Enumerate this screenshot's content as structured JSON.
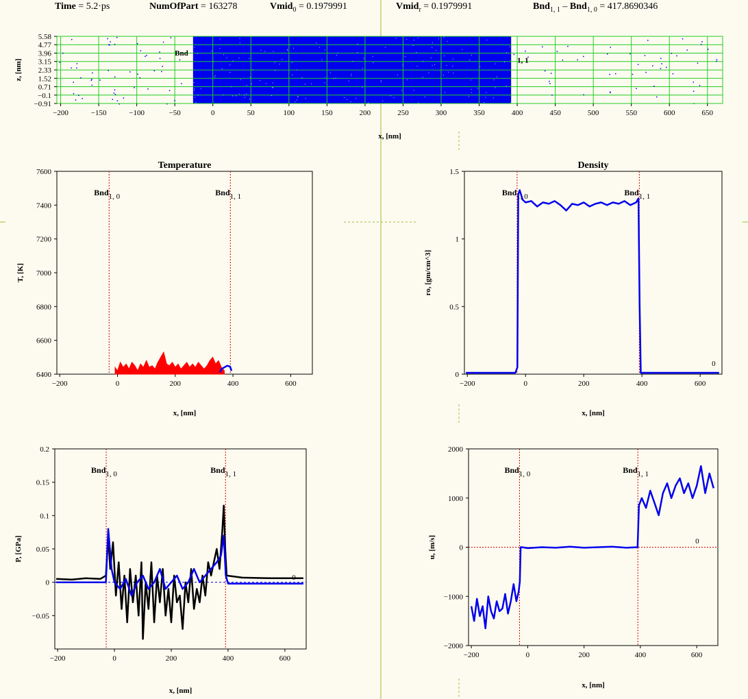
{
  "header": {
    "time_label": "Time",
    "time_value": "= 5.2·ps",
    "num_label": "NumOfPart",
    "num_value": "= 163278",
    "vmid0_label": "Vmid",
    "vmid0_sub": "0",
    "vmid0_value": "= 0.1979991",
    "vmidr_label": "Vmid",
    "vmidr_sub": "r",
    "vmidr_value": "= 0.1979991",
    "bnd_a": "Bnd",
    "bnd_a_sub": "1, 1",
    "bnd_minus": " – ",
    "bnd_b": "Bnd",
    "bnd_b_sub": "1, 0",
    "bnd_value": "= 417.8690346"
  },
  "chart_data": [
    {
      "id": "particles",
      "type": "scatter",
      "title": "",
      "xlabel": "x, [nm]",
      "ylabel": "z, [nm]",
      "xlim": [
        -205,
        670
      ],
      "ylim": [
        -0.91,
        5.58
      ],
      "xticks": [
        -200,
        -150,
        -100,
        -50,
        0,
        50,
        100,
        150,
        200,
        250,
        300,
        350,
        400,
        450,
        500,
        550,
        600,
        650
      ],
      "yticks": [
        5.58,
        4.77,
        3.96,
        3.15,
        2.33,
        1.52,
        0.71,
        -0.1,
        -0.91
      ],
      "ytick_labels": [
        "5.58",
        "4.77",
        "3.96",
        "3.15",
        "2.33",
        "1.52",
        "0.71",
        "−0.1",
        "−0.91"
      ],
      "dense_region": [
        -26,
        392
      ],
      "point_color": "#0000ee",
      "grid_color": "#22cc22",
      "annotations": [
        {
          "text": "Bnd",
          "x": -50,
          "y": 4.0
        },
        {
          "text": "1, 1",
          "x": 400,
          "y": 3.3
        }
      ]
    },
    {
      "id": "temperature",
      "type": "line",
      "title": "Temperature",
      "xlabel": "x, [nm]",
      "ylabel": "T, [K]",
      "xlim": [
        -210,
        675
      ],
      "ylim": [
        6400,
        7600
      ],
      "xticks": [
        -200,
        0,
        200,
        400,
        600
      ],
      "yticks": [
        6400,
        6600,
        6800,
        7000,
        7200,
        7400,
        7600
      ],
      "bnd0": -29,
      "bnd1": 391,
      "labels": [
        {
          "name": "Bnd",
          "sub": "1, 0",
          "x": -29
        },
        {
          "name": "Bnd",
          "sub": "1, 1",
          "x": 391
        }
      ],
      "series": [
        {
          "color": "#ff0000",
          "values": [
            [
              -8,
              6440
            ],
            [
              0,
              6420
            ],
            [
              10,
              6470
            ],
            [
              20,
              6440
            ],
            [
              30,
              6460
            ],
            [
              40,
              6430
            ],
            [
              50,
              6470
            ],
            [
              60,
              6450
            ],
            [
              70,
              6420
            ],
            [
              80,
              6460
            ],
            [
              90,
              6440
            ],
            [
              100,
              6480
            ],
            [
              110,
              6440
            ],
            [
              120,
              6450
            ],
            [
              130,
              6430
            ],
            [
              140,
              6470
            ],
            [
              150,
              6500
            ],
            [
              160,
              6530
            ],
            [
              170,
              6460
            ],
            [
              180,
              6450
            ],
            [
              190,
              6470
            ],
            [
              200,
              6440
            ],
            [
              210,
              6460
            ],
            [
              220,
              6430
            ],
            [
              230,
              6450
            ],
            [
              240,
              6470
            ],
            [
              250,
              6440
            ],
            [
              260,
              6460
            ],
            [
              270,
              6440
            ],
            [
              280,
              6470
            ],
            [
              290,
              6450
            ],
            [
              300,
              6430
            ],
            [
              310,
              6450
            ],
            [
              320,
              6480
            ],
            [
              330,
              6500
            ],
            [
              340,
              6460
            ],
            [
              350,
              6480
            ],
            [
              360,
              6440
            ],
            [
              370,
              6420
            ]
          ]
        },
        {
          "color": "#0000ee",
          "values": [
            [
              355,
              6410
            ],
            [
              360,
              6430
            ],
            [
              370,
              6440
            ],
            [
              380,
              6450
            ],
            [
              390,
              6445
            ],
            [
              395,
              6420
            ]
          ]
        }
      ]
    },
    {
      "id": "density",
      "type": "line",
      "title": "Density",
      "xlabel": "x, [nm]",
      "ylabel": "ro, [gm/cm^3]",
      "xlim": [
        -210,
        675
      ],
      "ylim": [
        0,
        1.5
      ],
      "xticks": [
        -200,
        0,
        200,
        400,
        600
      ],
      "yticks": [
        0,
        0.5,
        1,
        1.5
      ],
      "ytick_labels": [
        "0",
        "0.5",
        "1",
        "1.5"
      ],
      "bnd0": -29,
      "bnd1": 391,
      "zero_label": "0",
      "labels": [
        {
          "name": "Bnd",
          "sub": "1, 0",
          "x": -29
        },
        {
          "name": "Bnd",
          "sub": "1, 1",
          "x": 391
        }
      ],
      "series": [
        {
          "color": "#0000ee",
          "values": [
            [
              -205,
              0.01
            ],
            [
              -100,
              0.01
            ],
            [
              -35,
              0.01
            ],
            [
              -28,
              0.05
            ],
            [
              -25,
              1.33
            ],
            [
              -20,
              1.36
            ],
            [
              -10,
              1.29
            ],
            [
              0,
              1.27
            ],
            [
              20,
              1.28
            ],
            [
              40,
              1.24
            ],
            [
              60,
              1.27
            ],
            [
              80,
              1.26
            ],
            [
              100,
              1.28
            ],
            [
              120,
              1.25
            ],
            [
              140,
              1.21
            ],
            [
              160,
              1.26
            ],
            [
              180,
              1.25
            ],
            [
              200,
              1.27
            ],
            [
              220,
              1.24
            ],
            [
              240,
              1.26
            ],
            [
              260,
              1.27
            ],
            [
              280,
              1.25
            ],
            [
              300,
              1.27
            ],
            [
              320,
              1.26
            ],
            [
              340,
              1.28
            ],
            [
              360,
              1.25
            ],
            [
              380,
              1.27
            ],
            [
              388,
              1.3
            ],
            [
              392,
              0.5
            ],
            [
              396,
              0.01
            ],
            [
              450,
              0.01
            ],
            [
              550,
              0.01
            ],
            [
              665,
              0.01
            ]
          ]
        }
      ]
    },
    {
      "id": "pressure",
      "type": "line",
      "title": "",
      "xlabel": "x, [nm]",
      "ylabel": "P, [GPa]",
      "xlim": [
        -210,
        675
      ],
      "ylim": [
        -0.1,
        0.2
      ],
      "xticks": [
        -200,
        0,
        200,
        400,
        600
      ],
      "yticks": [
        -0.05,
        0,
        0.05,
        0.1,
        0.15,
        0.2
      ],
      "ytick_labels": [
        "−0.05",
        "0",
        "0.05",
        "0.1",
        "0.15",
        "0.2"
      ],
      "bnd0": -29,
      "bnd1": 391,
      "zero_label": "0",
      "labels": [
        {
          "name": "Bnd",
          "sub": "1, 0",
          "x": -29
        },
        {
          "name": "Bnd",
          "sub": "1, 1",
          "x": 391
        }
      ],
      "series": [
        {
          "color": "#000000",
          "values": [
            [
              -205,
              0.005
            ],
            [
              -150,
              0.004
            ],
            [
              -100,
              0.006
            ],
            [
              -50,
              0.005
            ],
            [
              -30,
              0.01
            ],
            [
              -22,
              0.07
            ],
            [
              -15,
              0.02
            ],
            [
              -5,
              0.06
            ],
            [
              5,
              -0.02
            ],
            [
              15,
              0.03
            ],
            [
              25,
              -0.04
            ],
            [
              35,
              0.01
            ],
            [
              45,
              -0.06
            ],
            [
              55,
              0.02
            ],
            [
              65,
              -0.03
            ],
            [
              75,
              0.01
            ],
            [
              85,
              -0.05
            ],
            [
              95,
              0.03
            ],
            [
              100,
              -0.085
            ],
            [
              110,
              0.0
            ],
            [
              120,
              -0.04
            ],
            [
              130,
              0.03
            ],
            [
              140,
              -0.06
            ],
            [
              150,
              0.01
            ],
            [
              160,
              -0.03
            ],
            [
              170,
              0.02
            ],
            [
              180,
              -0.05
            ],
            [
              190,
              -0.01
            ],
            [
              200,
              -0.06
            ],
            [
              210,
              0.01
            ],
            [
              220,
              -0.03
            ],
            [
              230,
              -0.02
            ],
            [
              240,
              -0.07
            ],
            [
              250,
              0.0
            ],
            [
              260,
              -0.03
            ],
            [
              270,
              0.02
            ],
            [
              280,
              -0.04
            ],
            [
              290,
              -0.01
            ],
            [
              300,
              -0.03
            ],
            [
              310,
              0.01
            ],
            [
              320,
              -0.02
            ],
            [
              330,
              0.03
            ],
            [
              340,
              0.01
            ],
            [
              350,
              0.03
            ],
            [
              360,
              0.05
            ],
            [
              370,
              0.02
            ],
            [
              380,
              0.08
            ],
            [
              385,
              0.115
            ],
            [
              390,
              0.05
            ],
            [
              395,
              0.01
            ],
            [
              450,
              0.007
            ],
            [
              550,
              0.006
            ],
            [
              665,
              0.006
            ]
          ]
        },
        {
          "color": "#0000ee",
          "values": [
            [
              -205,
              0.0
            ],
            [
              -100,
              0.0
            ],
            [
              -30,
              0.0
            ],
            [
              -22,
              0.08
            ],
            [
              -10,
              0.02
            ],
            [
              0,
              0.0
            ],
            [
              20,
              -0.01
            ],
            [
              40,
              0.005
            ],
            [
              60,
              -0.02
            ],
            [
              80,
              0.0
            ],
            [
              100,
              0.01
            ],
            [
              120,
              -0.01
            ],
            [
              140,
              0.0
            ],
            [
              160,
              0.02
            ],
            [
              180,
              -0.01
            ],
            [
              200,
              0.0
            ],
            [
              220,
              0.01
            ],
            [
              240,
              -0.01
            ],
            [
              260,
              0.0
            ],
            [
              280,
              0.02
            ],
            [
              300,
              0.0
            ],
            [
              320,
              0.01
            ],
            [
              340,
              0.02
            ],
            [
              360,
              0.03
            ],
            [
              375,
              0.04
            ],
            [
              385,
              0.07
            ],
            [
              392,
              0.01
            ],
            [
              400,
              -0.002
            ],
            [
              500,
              -0.002
            ],
            [
              665,
              -0.002
            ]
          ]
        }
      ]
    },
    {
      "id": "velocity",
      "type": "line",
      "title": "",
      "xlabel": "x, [nm]",
      "ylabel": "u, [m/s]",
      "xlim": [
        -210,
        675
      ],
      "ylim": [
        -2000,
        2000
      ],
      "xticks": [
        -200,
        0,
        200,
        400,
        600
      ],
      "yticks": [
        -2000,
        -1000,
        0,
        1000,
        2000
      ],
      "ytick_labels": [
        "−2000",
        "−1000",
        "0",
        "1000",
        "2000"
      ],
      "bnd0": -29,
      "bnd1": 391,
      "zero_label": "0",
      "labels": [
        {
          "name": "Bnd",
          "sub": "1, 0",
          "x": -29
        },
        {
          "name": "Bnd",
          "sub": "1, 1",
          "x": 391
        }
      ],
      "series": [
        {
          "color": "#0000ee",
          "values": [
            [
              -200,
              -1200
            ],
            [
              -190,
              -1500
            ],
            [
              -180,
              -1050
            ],
            [
              -170,
              -1400
            ],
            [
              -160,
              -1200
            ],
            [
              -150,
              -1650
            ],
            [
              -140,
              -1000
            ],
            [
              -130,
              -1300
            ],
            [
              -120,
              -1450
            ],
            [
              -110,
              -1100
            ],
            [
              -100,
              -1300
            ],
            [
              -90,
              -1250
            ],
            [
              -80,
              -950
            ],
            [
              -70,
              -1350
            ],
            [
              -60,
              -1100
            ],
            [
              -50,
              -750
            ],
            [
              -40,
              -1100
            ],
            [
              -32,
              -900
            ],
            [
              -28,
              -700
            ],
            [
              -25,
              0
            ],
            [
              -20,
              0
            ],
            [
              0,
              -20
            ],
            [
              50,
              0
            ],
            [
              100,
              -10
            ],
            [
              150,
              10
            ],
            [
              200,
              -10
            ],
            [
              250,
              0
            ],
            [
              300,
              10
            ],
            [
              350,
              -10
            ],
            [
              390,
              0
            ],
            [
              395,
              850
            ],
            [
              405,
              1000
            ],
            [
              420,
              800
            ],
            [
              435,
              1150
            ],
            [
              450,
              900
            ],
            [
              465,
              650
            ],
            [
              480,
              1100
            ],
            [
              495,
              1300
            ],
            [
              510,
              1000
            ],
            [
              525,
              1250
            ],
            [
              540,
              1400
            ],
            [
              555,
              1100
            ],
            [
              570,
              1300
            ],
            [
              585,
              1000
            ],
            [
              600,
              1250
            ],
            [
              615,
              1650
            ],
            [
              630,
              1100
            ],
            [
              645,
              1500
            ],
            [
              660,
              1200
            ]
          ]
        }
      ]
    }
  ]
}
